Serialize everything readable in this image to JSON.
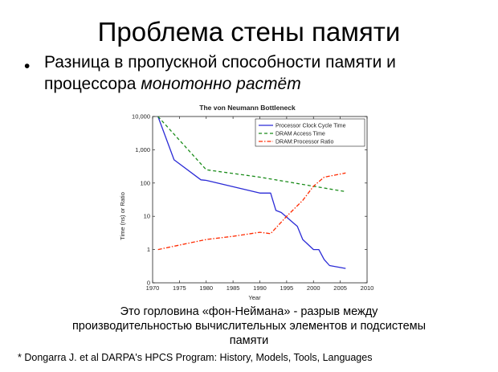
{
  "slide": {
    "title": "Проблема стены памяти",
    "bullet_text": "Разница в пропускной способности памяти и процессора ",
    "bullet_emphasis": "монотонно растёт",
    "caption_line1": "Это горловина «фон-Неймана» - разрыв между",
    "caption_line2": "производительностью вычислительных элементов и подсистемы",
    "caption_line3": "памяти",
    "footnote": "* Dongarra J. et al  DARPA's HPCS Program: History, Models, Tools, Languages"
  },
  "chart_data": {
    "type": "line",
    "title": "The von Neumann Bottleneck",
    "xlabel": "Year",
    "ylabel": "Time (ns) or Ratio",
    "xlim": [
      1970,
      2010
    ],
    "ylim": [
      0.1,
      10000
    ],
    "yscale": "log",
    "x_ticks": [
      1970,
      1975,
      1980,
      1985,
      1990,
      1995,
      2000,
      2005,
      2010
    ],
    "y_ticks": [
      {
        "value": 0.1,
        "label": "0"
      },
      {
        "value": 1,
        "label": "1"
      },
      {
        "value": 10,
        "label": "10"
      },
      {
        "value": 100,
        "label": "100"
      },
      {
        "value": 1000,
        "label": "1,000"
      },
      {
        "value": 10000,
        "label": "10,000"
      }
    ],
    "legend_position": "top-right",
    "grid": false,
    "series": [
      {
        "name": "Processor Clock Cycle Time",
        "color": "#2b2bd6",
        "dash": "solid",
        "points": [
          [
            1971,
            10000
          ],
          [
            1974,
            500
          ],
          [
            1979,
            125
          ],
          [
            1980,
            120
          ],
          [
            1990,
            50
          ],
          [
            1992,
            50
          ],
          [
            1993,
            15
          ],
          [
            1994,
            13
          ],
          [
            1997,
            5
          ],
          [
            1998,
            2
          ],
          [
            2000,
            1
          ],
          [
            2001,
            1
          ],
          [
            2002,
            0.5
          ],
          [
            2003,
            0.33
          ],
          [
            2006,
            0.27
          ]
        ]
      },
      {
        "name": "DRAM Access Time",
        "color": "#1a8c1a",
        "dash": "dashed",
        "points": [
          [
            1971,
            10000
          ],
          [
            1980,
            250
          ],
          [
            1990,
            150
          ],
          [
            2000,
            80
          ],
          [
            2006,
            55
          ]
        ]
      },
      {
        "name": "DRAM:Processor Ratio",
        "color": "#ff2a00",
        "dash": "dashdot",
        "points": [
          [
            1971,
            1
          ],
          [
            1980,
            2
          ],
          [
            1985,
            2.5
          ],
          [
            1990,
            3.3
          ],
          [
            1992,
            3
          ],
          [
            1995,
            10
          ],
          [
            1998,
            30
          ],
          [
            2000,
            80
          ],
          [
            2002,
            150
          ],
          [
            2006,
            200
          ]
        ]
      }
    ]
  }
}
